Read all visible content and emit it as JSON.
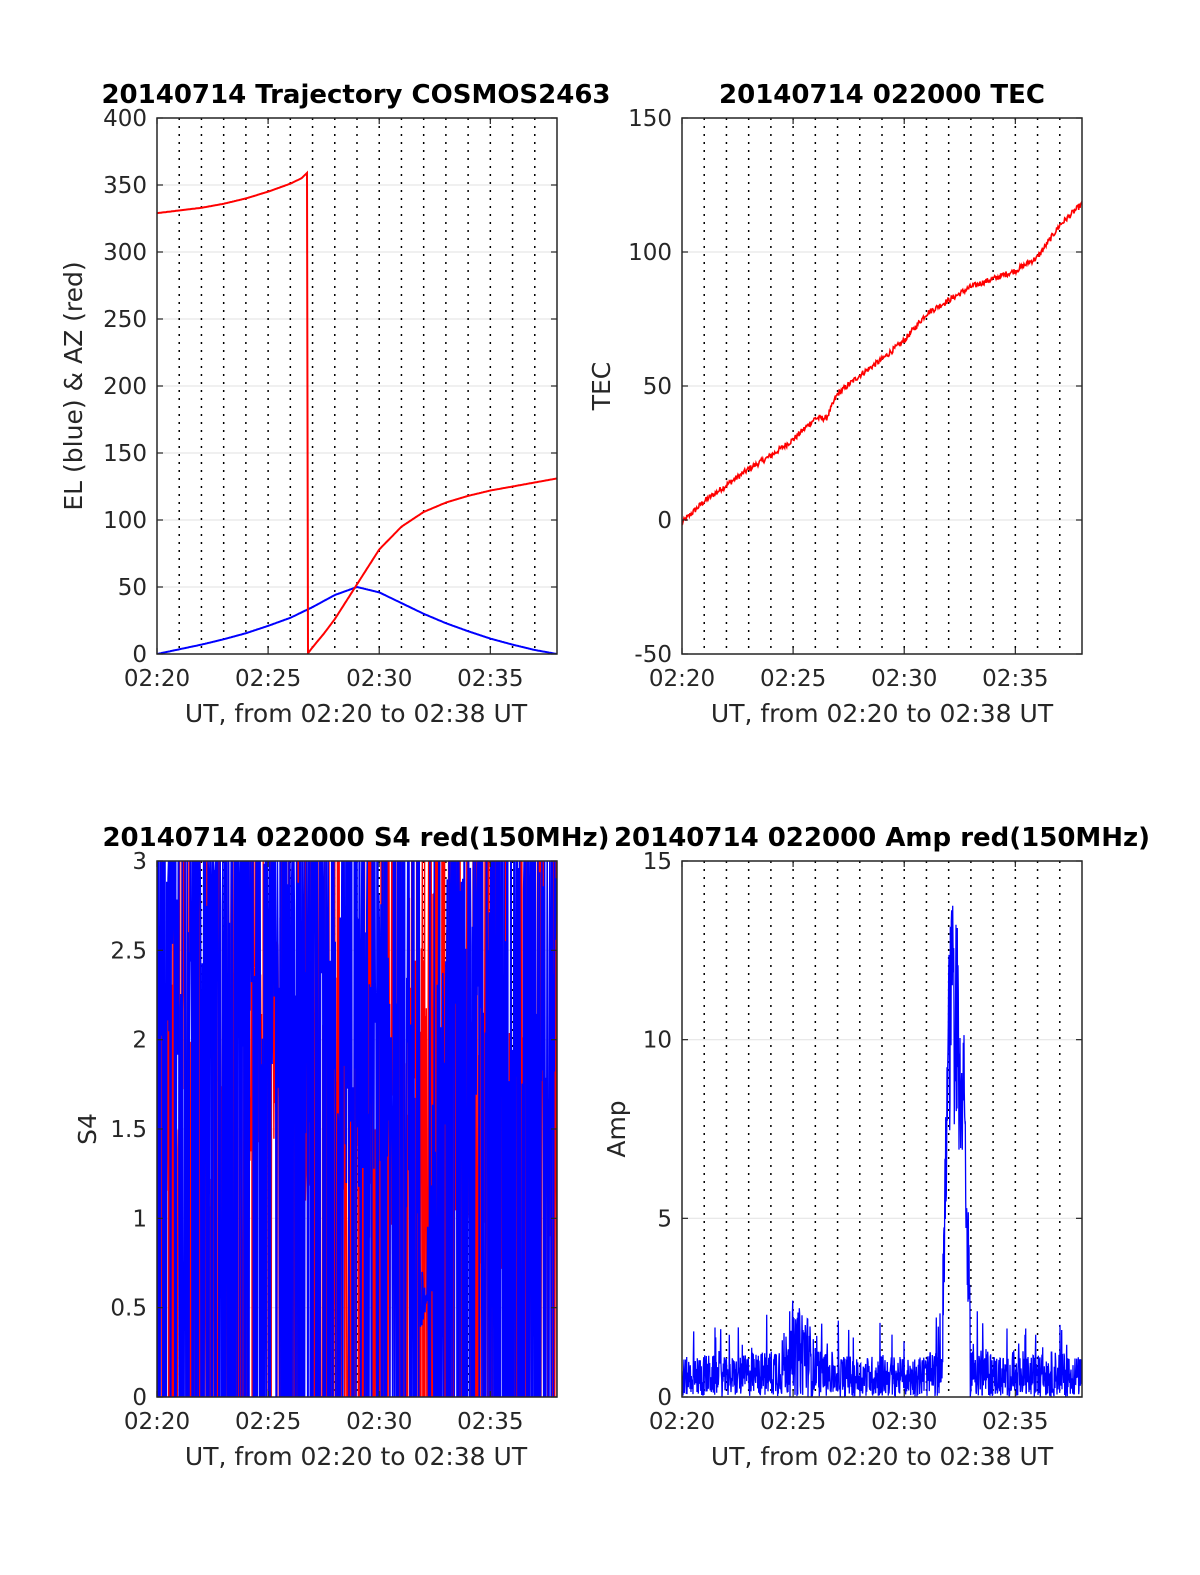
{
  "chart_data": [
    {
      "type": "line",
      "title": "20140714 Trajectory COSMOS2463",
      "xlabel": "UT, from 02:20 to 02:38 UT",
      "ylabel": "EL (blue) & AZ (red)",
      "xlim": [
        "02:20",
        "02:38"
      ],
      "ylim": [
        0,
        400
      ],
      "xticks": [
        "02:20",
        "02:25",
        "02:30",
        "02:35"
      ],
      "yticks": [
        "0",
        "50",
        "100",
        "150",
        "200",
        "250",
        "300",
        "350",
        "400"
      ],
      "grid": true,
      "colors": {
        "EL": "#0000ff",
        "AZ": "#ff0000"
      },
      "series": [
        {
          "color": "#0000ff",
          "x": [
            "02:20:00",
            "02:21:00",
            "02:22:00",
            "02:23:00",
            "02:24:00",
            "02:25:00",
            "02:26:00",
            "02:27:00",
            "02:28:00",
            "02:29:00",
            "02:30:00",
            "02:31:00",
            "02:32:00",
            "02:33:00",
            "02:34:00",
            "02:35:00",
            "02:36:00",
            "02:37:00",
            "02:38:00"
          ],
          "y": [
            0,
            3.5,
            7,
            11,
            15.5,
            21,
            27,
            35,
            44,
            50,
            46,
            38,
            30,
            23,
            17,
            11.5,
            7,
            3,
            0
          ]
        },
        {
          "color": "#ff0000",
          "x": [
            "02:20:00",
            "02:21:00",
            "02:22:00",
            "02:23:00",
            "02:24:00",
            "02:25:00",
            "02:26:00",
            "02:26:30",
            "02:26:45",
            "02:26:46",
            "02:27:00",
            "02:27:30",
            "02:28:00",
            "02:28:30",
            "02:29:00",
            "02:29:30",
            "02:30:00",
            "02:31:00",
            "02:32:00",
            "02:33:00",
            "02:34:00",
            "02:35:00",
            "02:36:00",
            "02:37:00",
            "02:38:00"
          ],
          "y": [
            329,
            331,
            333,
            336,
            340,
            345,
            351,
            355,
            359,
            0,
            5,
            15,
            26,
            39,
            52,
            65,
            78,
            95,
            106,
            113,
            118,
            122,
            125,
            128,
            131
          ]
        }
      ]
    },
    {
      "type": "line",
      "title": "20140714 022000 TEC",
      "xlabel": "UT, from 02:20 to 02:38 UT",
      "ylabel": "TEC",
      "xlim": [
        "02:20",
        "02:38"
      ],
      "ylim": [
        -50,
        150
      ],
      "xticks": [
        "02:20",
        "02:25",
        "02:30",
        "02:35"
      ],
      "yticks": [
        "-50",
        "0",
        "50",
        "100",
        "150"
      ],
      "grid": true,
      "series": [
        {
          "color": "#ff0000",
          "x": [
            "02:20:00",
            "02:21:00",
            "02:22:00",
            "02:23:00",
            "02:24:00",
            "02:25:00",
            "02:26:00",
            "02:26:30",
            "02:27:00",
            "02:28:00",
            "02:29:00",
            "02:30:00",
            "02:31:00",
            "02:32:00",
            "02:33:00",
            "02:34:00",
            "02:35:00",
            "02:36:00",
            "02:37:00",
            "02:38:00"
          ],
          "y": [
            -1,
            7,
            13,
            19,
            24,
            30,
            38,
            38,
            47,
            54,
            60,
            67,
            77,
            82,
            87,
            90,
            93,
            98,
            110,
            118
          ]
        }
      ]
    },
    {
      "type": "line",
      "title": "20140714 022000 S4 red(150MHz)",
      "xlabel": "UT, from 02:20 to 02:38 UT",
      "ylabel": "S4",
      "xlim": [
        "02:20",
        "02:38"
      ],
      "ylim": [
        0,
        3
      ],
      "xticks": [
        "02:20",
        "02:25",
        "02:30",
        "02:35"
      ],
      "yticks": [
        "0",
        "0.5",
        "1",
        "1.5",
        "2",
        "2.5",
        "3"
      ],
      "grid": true,
      "series": [
        {
          "color": "#ff0000",
          "x": [
            "02:20",
            "02:21",
            "02:22",
            "02:23",
            "02:24",
            "02:25",
            "02:26",
            "02:27",
            "02:28",
            "02:29",
            "02:30",
            "02:31",
            "02:32",
            "02:33",
            "02:34",
            "02:35",
            "02:36",
            "02:37",
            "02:38"
          ],
          "y": [
            1.9,
            1.7,
            1.6,
            1.8,
            2.0,
            2.2,
            1.9,
            1.7,
            1.6,
            1.5,
            1.6,
            1.8,
            2.4,
            2.0,
            1.6,
            1.5,
            1.4,
            1.5,
            1.6
          ]
        },
        {
          "color": "#0000ff",
          "x": [
            "02:20",
            "02:21",
            "02:22",
            "02:23",
            "02:24",
            "02:25",
            "02:26",
            "02:27",
            "02:28",
            "02:29",
            "02:30",
            "02:31",
            "02:32",
            "02:33",
            "02:34",
            "02:35",
            "02:36",
            "02:37",
            "02:38"
          ],
          "y": [
            2.6,
            2.7,
            2.6,
            2.5,
            2.7,
            2.5,
            2.3,
            2.1,
            2.0,
            1.9,
            2.1,
            2.0,
            0.4,
            2.3,
            2.5,
            2.4,
            2.3,
            2.4,
            2.3
          ]
        }
      ]
    },
    {
      "type": "line",
      "title": "20140714 022000 Amp red(150MHz)",
      "xlabel": "UT, from 02:20 to 02:38 UT",
      "ylabel": "Amp",
      "xlim": [
        "02:20",
        "02:38"
      ],
      "ylim": [
        0,
        15
      ],
      "xticks": [
        "02:20",
        "02:25",
        "02:30",
        "02:35"
      ],
      "yticks": [
        "0",
        "5",
        "10",
        "15"
      ],
      "grid": true,
      "series": [
        {
          "color": "#0000ff",
          "x": [
            "02:20:00",
            "02:21:00",
            "02:22:00",
            "02:23:00",
            "02:24:00",
            "02:25:00",
            "02:25:30",
            "02:26:00",
            "02:27:00",
            "02:28:00",
            "02:29:00",
            "02:30:00",
            "02:31:00",
            "02:31:40",
            "02:32:00",
            "02:32:20",
            "02:32:40",
            "02:33:00",
            "02:34:00",
            "02:35:00",
            "02:36:00",
            "02:37:00",
            "02:38:00"
          ],
          "y": [
            1.0,
            1.1,
            1.0,
            1.1,
            1.2,
            2.0,
            2.5,
            1.3,
            1.1,
            1.0,
            1.1,
            1.0,
            1.1,
            1.2,
            13.5,
            14.8,
            11.0,
            1.5,
            1.1,
            1.0,
            1.1,
            1.2,
            1.0
          ]
        }
      ]
    }
  ]
}
